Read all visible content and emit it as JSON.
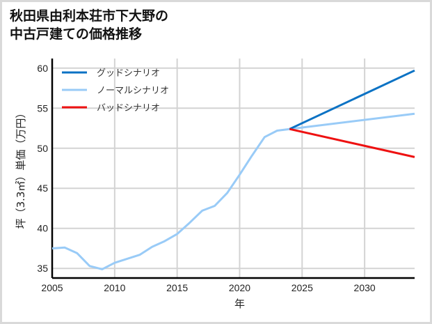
{
  "title_line1": "秋田県由利本荘市下大野の",
  "title_line2": "中古戸建ての価格推移",
  "chart_data": {
    "type": "line",
    "title": "秋田県由利本荘市下大野の中古戸建ての価格推移",
    "xlabel": "年",
    "ylabel": "坪（3.3㎡）単価（万円）",
    "xlim": [
      2005,
      2034
    ],
    "ylim": [
      33.8,
      61.2
    ],
    "xticks": [
      2005,
      2010,
      2015,
      2020,
      2025,
      2030
    ],
    "yticks": [
      35,
      40,
      45,
      50,
      55,
      60
    ],
    "grid": true,
    "legend_position": "upper left",
    "series": [
      {
        "name": "グッドシナリオ",
        "color": "#0b72c4",
        "x": [
          2024,
          2034
        ],
        "values": [
          52.4,
          59.7
        ]
      },
      {
        "name": "ノーマルシナリオ",
        "color": "#99cbf7",
        "x": [
          2005,
          2006,
          2007,
          2008,
          2009,
          2010,
          2011,
          2012,
          2013,
          2014,
          2015,
          2016,
          2017,
          2018,
          2019,
          2020,
          2021,
          2022,
          2023,
          2024,
          2034
        ],
        "values": [
          37.5,
          37.6,
          36.9,
          35.3,
          34.9,
          35.7,
          36.2,
          36.7,
          37.7,
          38.4,
          39.3,
          40.7,
          42.2,
          42.8,
          44.4,
          46.7,
          49.1,
          51.4,
          52.2,
          52.4,
          54.3
        ]
      },
      {
        "name": "バッドシナリオ",
        "color": "#ee1111",
        "x": [
          2024,
          2034
        ],
        "values": [
          52.4,
          48.9
        ]
      }
    ]
  }
}
